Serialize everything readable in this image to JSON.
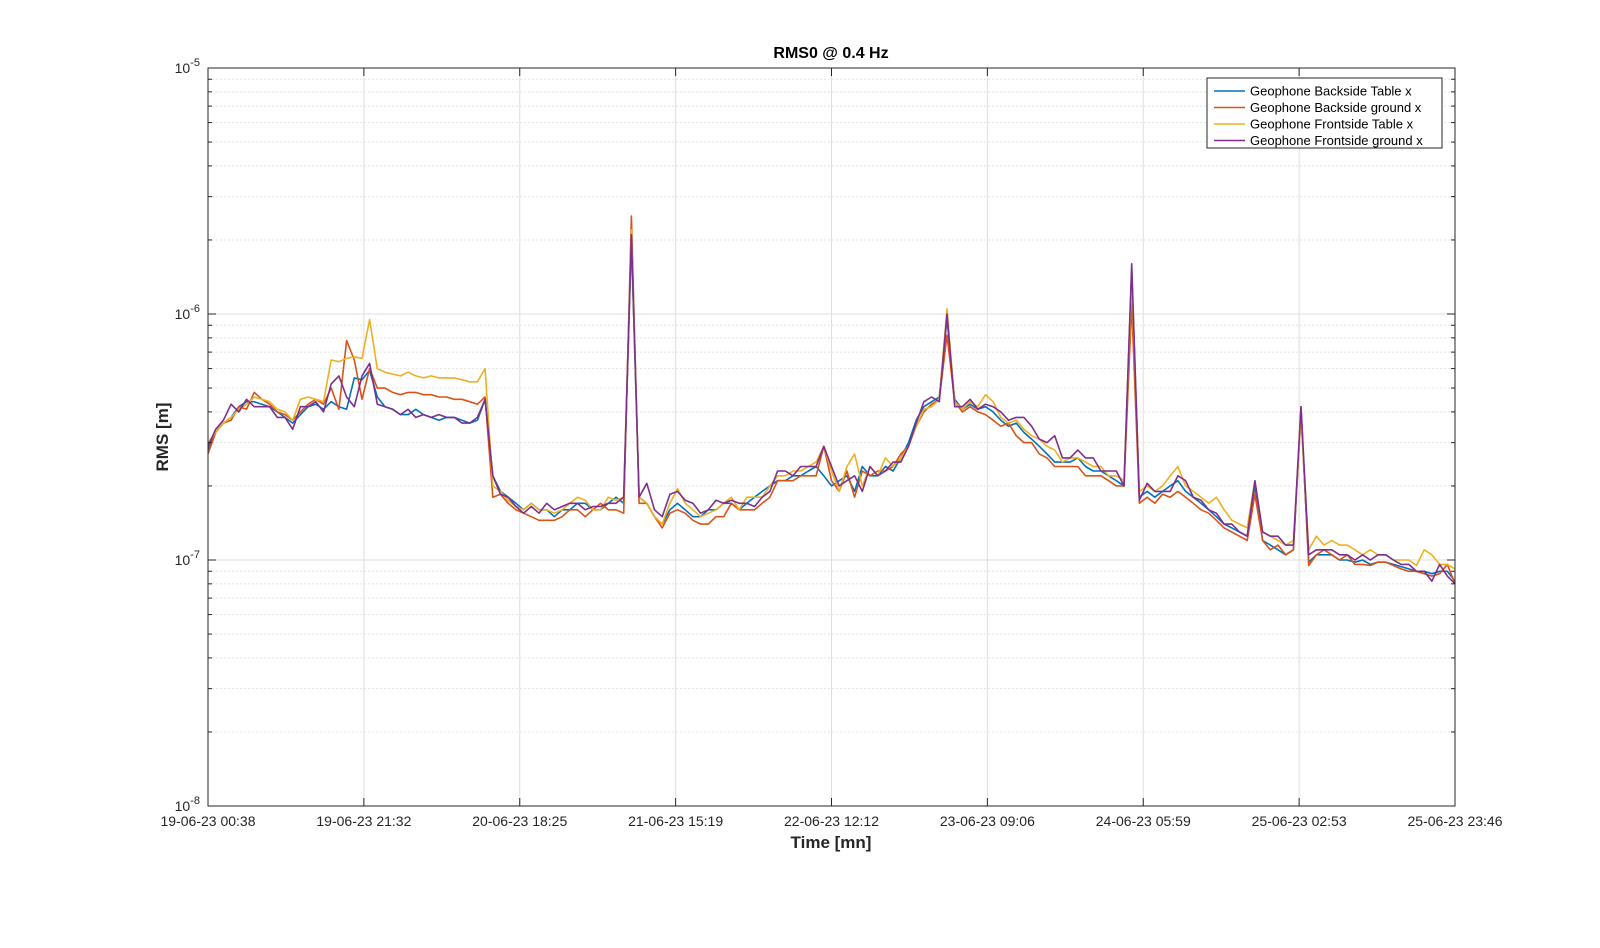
{
  "chart_data": {
    "type": "line",
    "title": "RMS0 @ 0.4 Hz",
    "xlabel": "Time [mn]",
    "ylabel": "RMS [m]",
    "yscale": "log",
    "ylim": [
      1e-08,
      1e-05
    ],
    "ytick_labels": [
      {
        "base": "10",
        "exp": "-8"
      },
      {
        "base": "10",
        "exp": "-7"
      },
      {
        "base": "10",
        "exp": "-6"
      },
      {
        "base": "10",
        "exp": "-5"
      }
    ],
    "xtick_labels": [
      "19-06-23 00:38",
      "19-06-23 21:32",
      "20-06-23 18:25",
      "21-06-23 15:19",
      "22-06-23 12:12",
      "23-06-23 09:06",
      "24-06-23 05:59",
      "25-06-23 02:53",
      "25-06-23 23:46"
    ],
    "grid": true,
    "legend_position": "top-right",
    "x_first": "2023-06-19 00:38",
    "x_step_minutes": 60,
    "series": [
      {
        "name": "Geophone Backside Table x",
        "color": "#0072BD",
        "values": [
          2.8e-07,
          3.3e-07,
          3.6e-07,
          3.8e-07,
          4.2e-07,
          4.4e-07,
          4.4e-07,
          4.3e-07,
          4.2e-07,
          4e-07,
          3.8e-07,
          3.6e-07,
          3.9e-07,
          4.2e-07,
          4.3e-07,
          4.1e-07,
          4.4e-07,
          4.2e-07,
          4.1e-07,
          5.5e-07,
          5.4e-07,
          5.9e-07,
          4.6e-07,
          4.2e-07,
          4.1e-07,
          3.9e-07,
          3.9e-07,
          4.1e-07,
          3.9e-07,
          3.8e-07,
          3.7e-07,
          3.8e-07,
          3.8e-07,
          3.7e-07,
          3.6e-07,
          3.7e-07,
          4.5e-07,
          2.2e-07,
          1.9e-07,
          1.8e-07,
          1.7e-07,
          1.6e-07,
          1.7e-07,
          1.6e-07,
          1.6e-07,
          1.5e-07,
          1.6e-07,
          1.6e-07,
          1.7e-07,
          1.7e-07,
          1.6e-07,
          1.6e-07,
          1.7e-07,
          1.8e-07,
          1.7e-07,
          2e-06,
          1.8e-07,
          1.7e-07,
          1.5e-07,
          1.4e-07,
          1.6e-07,
          1.7e-07,
          1.6e-07,
          1.5e-07,
          1.5e-07,
          1.6e-07,
          1.6e-07,
          1.7e-07,
          1.7e-07,
          1.6e-07,
          1.7e-07,
          1.8e-07,
          1.9e-07,
          2e-07,
          2.1e-07,
          2.1e-07,
          2.2e-07,
          2.2e-07,
          2.3e-07,
          2.4e-07,
          2.2e-07,
          2e-07,
          2.1e-07,
          2.2e-07,
          1.9e-07,
          2.4e-07,
          2.2e-07,
          2.2e-07,
          2.4e-07,
          2.3e-07,
          2.6e-07,
          3e-07,
          3.7e-07,
          4.2e-07,
          4.4e-07,
          4.6e-07,
          9.6e-07,
          4.5e-07,
          4.1e-07,
          4.3e-07,
          4.1e-07,
          4.2e-07,
          4e-07,
          3.7e-07,
          3.5e-07,
          3.6e-07,
          3.3e-07,
          3.1e-07,
          2.9e-07,
          2.7e-07,
          2.5e-07,
          2.5e-07,
          2.5e-07,
          2.6e-07,
          2.4e-07,
          2.3e-07,
          2.3e-07,
          2.2e-07,
          2.1e-07,
          2e-07,
          1.5e-06,
          1.8e-07,
          1.9e-07,
          1.8e-07,
          1.9e-07,
          2e-07,
          2.1e-07,
          1.9e-07,
          1.8e-07,
          1.7e-07,
          1.6e-07,
          1.5e-07,
          1.4e-07,
          1.35e-07,
          1.3e-07,
          1.25e-07,
          2e-07,
          1.2e-07,
          1.15e-07,
          1.1e-07,
          1.05e-07,
          1.1e-07,
          4e-07,
          9.8e-08,
          1.05e-07,
          1.05e-07,
          1.05e-07,
          1e-07,
          1e-07,
          9.8e-08,
          1e-07,
          9.6e-08,
          9.8e-08,
          9.8e-08,
          9.6e-08,
          9.4e-08,
          9.2e-08,
          9e-08,
          9e-08,
          8.8e-08,
          9e-08,
          9e-08,
          8.2e-08
        ]
      },
      {
        "name": "Geophone Backside ground x",
        "color": "#D95319",
        "values": [
          2.7e-07,
          3.3e-07,
          3.6e-07,
          3.7e-07,
          4.2e-07,
          4.1e-07,
          4.8e-07,
          4.5e-07,
          4.3e-07,
          4e-07,
          3.9e-07,
          3.7e-07,
          4e-07,
          4.3e-07,
          4.5e-07,
          4.3e-07,
          5e-07,
          4.1e-07,
          7.8e-07,
          6.5e-07,
          4.5e-07,
          6e-07,
          5e-07,
          5e-07,
          4.8e-07,
          4.7e-07,
          4.8e-07,
          4.8e-07,
          4.7e-07,
          4.7e-07,
          4.6e-07,
          4.6e-07,
          4.5e-07,
          4.5e-07,
          4.4e-07,
          4.3e-07,
          4.6e-07,
          1.8e-07,
          1.85e-07,
          1.7e-07,
          1.6e-07,
          1.55e-07,
          1.5e-07,
          1.45e-07,
          1.45e-07,
          1.45e-07,
          1.5e-07,
          1.6e-07,
          1.6e-07,
          1.5e-07,
          1.6e-07,
          1.7e-07,
          1.6e-07,
          1.6e-07,
          1.55e-07,
          2.5e-06,
          1.7e-07,
          1.7e-07,
          1.5e-07,
          1.35e-07,
          1.55e-07,
          1.6e-07,
          1.55e-07,
          1.45e-07,
          1.4e-07,
          1.4e-07,
          1.5e-07,
          1.5e-07,
          1.7e-07,
          1.6e-07,
          1.6e-07,
          1.6e-07,
          1.7e-07,
          1.8e-07,
          2.1e-07,
          2.1e-07,
          2.1e-07,
          2.2e-07,
          2.2e-07,
          2.2e-07,
          2.9e-07,
          2.1e-07,
          1.9e-07,
          2.3e-07,
          1.8e-07,
          2.3e-07,
          2.2e-07,
          2.3e-07,
          2.3e-07,
          2.4e-07,
          2.7e-07,
          2.9e-07,
          3.5e-07,
          4e-07,
          4.3e-07,
          4.5e-07,
          8.2e-07,
          4.4e-07,
          4e-07,
          4.2e-07,
          4e-07,
          3.9e-07,
          3.7e-07,
          3.5e-07,
          3.6e-07,
          3.2e-07,
          3e-07,
          3e-07,
          2.7e-07,
          2.6e-07,
          2.4e-07,
          2.4e-07,
          2.4e-07,
          2.4e-07,
          2.2e-07,
          2.2e-07,
          2.2e-07,
          2.1e-07,
          2e-07,
          2e-07,
          1.1e-06,
          1.7e-07,
          1.8e-07,
          1.7e-07,
          1.85e-07,
          1.8e-07,
          1.9e-07,
          1.8e-07,
          1.7e-07,
          1.6e-07,
          1.55e-07,
          1.45e-07,
          1.35e-07,
          1.3e-07,
          1.25e-07,
          1.2e-07,
          1.85e-07,
          1.2e-07,
          1.1e-07,
          1.15e-07,
          1.05e-07,
          1.1e-07,
          4.2e-07,
          9.5e-08,
          1.05e-07,
          1.1e-07,
          1.05e-07,
          1e-07,
          1.05e-07,
          9.6e-08,
          9.6e-08,
          9.5e-08,
          9.8e-08,
          9.8e-08,
          9.5e-08,
          9.2e-08,
          9e-08,
          9e-08,
          8.8e-08,
          8.6e-08,
          8.8e-08,
          9.6e-08,
          8e-08
        ]
      },
      {
        "name": "Geophone Frontside Table x",
        "color": "#EDB120",
        "values": [
          3e-07,
          3.3e-07,
          3.6e-07,
          3.8e-07,
          4.1e-07,
          4.3e-07,
          4.6e-07,
          4.5e-07,
          4.4e-07,
          4.1e-07,
          4e-07,
          3.7e-07,
          4.5e-07,
          4.6e-07,
          4.5e-07,
          4.4e-07,
          6.5e-07,
          6.4e-07,
          6.6e-07,
          6.7e-07,
          6.6e-07,
          9.5e-07,
          6e-07,
          5.8e-07,
          5.7e-07,
          5.6e-07,
          5.8e-07,
          5.6e-07,
          5.5e-07,
          5.6e-07,
          5.5e-07,
          5.5e-07,
          5.5e-07,
          5.4e-07,
          5.3e-07,
          5.3e-07,
          6e-07,
          2e-07,
          1.9e-07,
          1.75e-07,
          1.65e-07,
          1.6e-07,
          1.7e-07,
          1.6e-07,
          1.6e-07,
          1.55e-07,
          1.6e-07,
          1.7e-07,
          1.8e-07,
          1.75e-07,
          1.6e-07,
          1.6e-07,
          1.8e-07,
          1.75e-07,
          1.8e-07,
          2.2e-06,
          1.8e-07,
          1.7e-07,
          1.5e-07,
          1.4e-07,
          1.7e-07,
          1.95e-07,
          1.7e-07,
          1.6e-07,
          1.5e-07,
          1.55e-07,
          1.6e-07,
          1.7e-07,
          1.8e-07,
          1.6e-07,
          1.8e-07,
          1.8e-07,
          1.8e-07,
          2e-07,
          2.2e-07,
          2.2e-07,
          2.3e-07,
          2.3e-07,
          2.4e-07,
          2.5e-07,
          2.9e-07,
          2.3e-07,
          1.9e-07,
          2.4e-07,
          2.7e-07,
          2e-07,
          2.4e-07,
          2.2e-07,
          2.6e-07,
          2.4e-07,
          2.6e-07,
          2.9e-07,
          3.5e-07,
          4.1e-07,
          4.2e-07,
          4.5e-07,
          1.05e-06,
          4.4e-07,
          4.1e-07,
          4.4e-07,
          4.2e-07,
          4.7e-07,
          4.4e-07,
          3.8e-07,
          3.6e-07,
          3.7e-07,
          3.4e-07,
          3.2e-07,
          3.1e-07,
          2.9e-07,
          2.8e-07,
          2.5e-07,
          2.6e-07,
          2.6e-07,
          2.5e-07,
          2.4e-07,
          2.4e-07,
          2.2e-07,
          2.2e-07,
          2.1e-07,
          1.4e-06,
          1.9e-07,
          2e-07,
          1.9e-07,
          2e-07,
          2.2e-07,
          2.4e-07,
          2e-07,
          1.9e-07,
          1.8e-07,
          1.7e-07,
          1.8e-07,
          1.6e-07,
          1.45e-07,
          1.4e-07,
          1.35e-07,
          2.1e-07,
          1.3e-07,
          1.25e-07,
          1.2e-07,
          1.15e-07,
          1.2e-07,
          3.8e-07,
          1.1e-07,
          1.25e-07,
          1.15e-07,
          1.2e-07,
          1.15e-07,
          1.15e-07,
          1.1e-07,
          1.05e-07,
          1.1e-07,
          1.05e-07,
          1.05e-07,
          1e-07,
          1e-07,
          1e-07,
          9.5e-08,
          1.1e-07,
          1.05e-07,
          9.6e-08,
          9.6e-08,
          9.2e-08
        ]
      },
      {
        "name": "Geophone Frontside ground x",
        "color": "#7E2F8E",
        "values": [
          2.9e-07,
          3.4e-07,
          3.7e-07,
          4.3e-07,
          4e-07,
          4.5e-07,
          4.2e-07,
          4.2e-07,
          4.2e-07,
          3.8e-07,
          3.8e-07,
          3.4e-07,
          4.2e-07,
          4.2e-07,
          4.4e-07,
          4e-07,
          5.2e-07,
          5.6e-07,
          4.6e-07,
          4.2e-07,
          5.6e-07,
          6.3e-07,
          4.3e-07,
          4.2e-07,
          4.1e-07,
          3.9e-07,
          4.1e-07,
          3.8e-07,
          3.9e-07,
          3.8e-07,
          3.9e-07,
          3.8e-07,
          3.8e-07,
          3.6e-07,
          3.6e-07,
          3.8e-07,
          4.5e-07,
          2.2e-07,
          1.85e-07,
          1.8e-07,
          1.65e-07,
          1.55e-07,
          1.65e-07,
          1.55e-07,
          1.7e-07,
          1.6e-07,
          1.65e-07,
          1.7e-07,
          1.7e-07,
          1.6e-07,
          1.65e-07,
          1.65e-07,
          1.7e-07,
          1.7e-07,
          1.8e-07,
          2.1e-06,
          1.8e-07,
          2.05e-07,
          1.6e-07,
          1.5e-07,
          1.85e-07,
          1.9e-07,
          1.75e-07,
          1.7e-07,
          1.55e-07,
          1.6e-07,
          1.75e-07,
          1.7e-07,
          1.75e-07,
          1.7e-07,
          1.7e-07,
          1.65e-07,
          1.8e-07,
          1.9e-07,
          2.3e-07,
          2.3e-07,
          2.2e-07,
          2.4e-07,
          2.4e-07,
          2.4e-07,
          2.9e-07,
          2.4e-07,
          2e-07,
          2.1e-07,
          2.2e-07,
          1.9e-07,
          2.4e-07,
          2.2e-07,
          2.3e-07,
          2.5e-07,
          2.5e-07,
          2.9e-07,
          3.6e-07,
          4.4e-07,
          4.6e-07,
          4.4e-07,
          1e-06,
          4.2e-07,
          4.2e-07,
          4.5e-07,
          4.1e-07,
          4.3e-07,
          4.2e-07,
          4e-07,
          3.7e-07,
          3.8e-07,
          3.8e-07,
          3.5e-07,
          3.1e-07,
          3e-07,
          3.2e-07,
          2.6e-07,
          2.6e-07,
          2.8e-07,
          2.6e-07,
          2.6e-07,
          2.3e-07,
          2.3e-07,
          2.3e-07,
          2e-07,
          1.6e-06,
          1.75e-07,
          2.05e-07,
          1.9e-07,
          1.9e-07,
          1.9e-07,
          2.2e-07,
          2.1e-07,
          1.8e-07,
          1.75e-07,
          1.6e-07,
          1.55e-07,
          1.4e-07,
          1.4e-07,
          1.3e-07,
          1.25e-07,
          2.1e-07,
          1.3e-07,
          1.25e-07,
          1.25e-07,
          1.15e-07,
          1.15e-07,
          4.2e-07,
          1.05e-07,
          1.1e-07,
          1.1e-07,
          1.1e-07,
          1.05e-07,
          1.05e-07,
          1e-07,
          1.05e-07,
          1e-07,
          1.05e-07,
          1.05e-07,
          1e-07,
          9.6e-08,
          9.6e-08,
          9e-08,
          9e-08,
          8.2e-08,
          9.6e-08,
          8.6e-08,
          8e-08
        ]
      }
    ]
  }
}
